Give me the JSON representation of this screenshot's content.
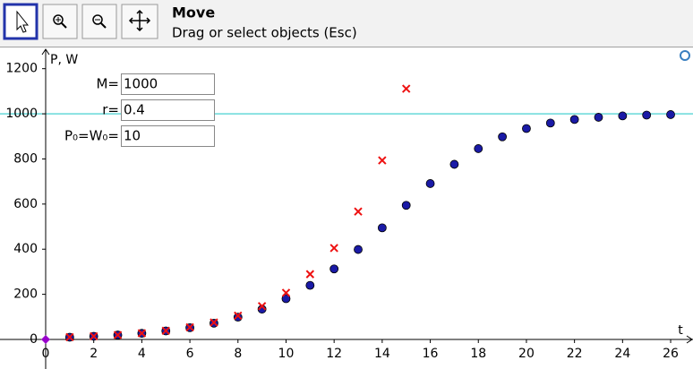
{
  "toolbar": {
    "tool_name": "Move",
    "tool_help": "Drag or select objects (Esc)"
  },
  "inputs": [
    {
      "label": "M=",
      "value": "1000"
    },
    {
      "label": "r=",
      "value": "0.4"
    },
    {
      "label": "P₀=W₀=",
      "value": "10"
    }
  ],
  "chart_data": {
    "type": "scatter",
    "x_label": "t",
    "y_label": "P, W",
    "xlim": [
      0,
      26.93
    ],
    "ylim": [
      -131,
      1294
    ],
    "xticks": [
      0,
      2,
      4,
      6,
      8,
      10,
      12,
      14,
      16,
      18,
      20,
      22,
      24,
      26
    ],
    "yticks": [
      0,
      200,
      400,
      600,
      800,
      1000,
      1200
    ],
    "hline": {
      "value": 1000,
      "color": "#33cccc"
    },
    "point": {
      "x": 0,
      "y": 0,
      "color": "#9900cc"
    },
    "series": [
      {
        "marker": "dot",
        "color": "#1a1aa6",
        "x": [
          1,
          2,
          3,
          4,
          5,
          6,
          7,
          8,
          9,
          10,
          11,
          12,
          13,
          14,
          15,
          16,
          17,
          18,
          19,
          20,
          21,
          22,
          23,
          24,
          25,
          26
        ],
        "values": [
          10,
          14,
          19.5,
          27.1,
          37.6,
          52.1,
          71.9,
          98.6,
          134.1,
          180.5,
          239.7,
          312.6,
          398.6,
          494.6,
          594.5,
          690.9,
          776.3,
          845.8,
          898.1,
          934.7,
          959.1,
          974.9,
          984.7,
          990.7,
          994.4,
          996.6
        ]
      },
      {
        "marker": "cross",
        "color": "#ee1111",
        "x": [
          1,
          2,
          3,
          4,
          5,
          6,
          7,
          8,
          9,
          10,
          11,
          12,
          13,
          14,
          15
        ],
        "values": [
          10,
          14,
          19.6,
          27.4,
          38.4,
          53.8,
          75.3,
          105.4,
          147.6,
          206.6,
          289.3,
          405,
          567,
          793.7,
          1111.2
        ]
      }
    ]
  }
}
